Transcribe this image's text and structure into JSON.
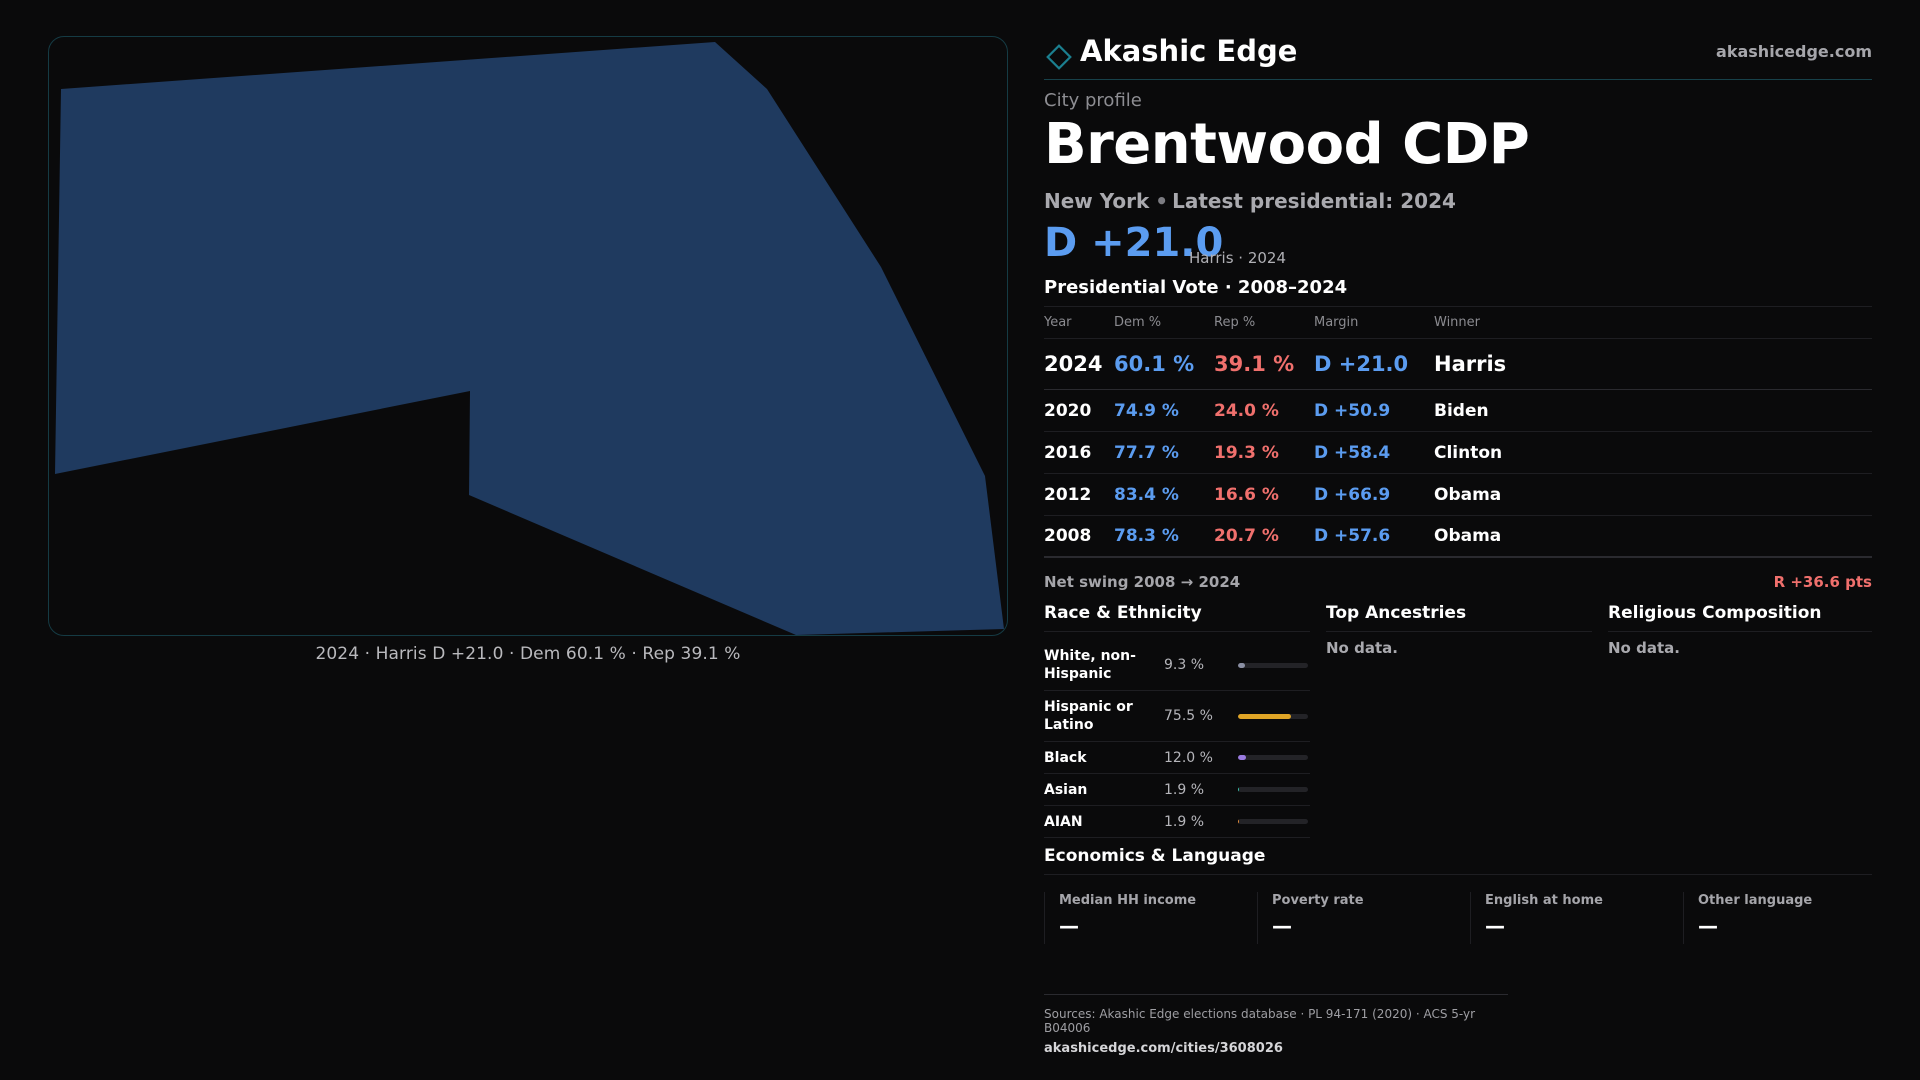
{
  "brand": {
    "name": "Akashic Edge",
    "url": "akashicedge.com",
    "accent_color": "#1b7f8f",
    "logo_icon": "diamond-outline-icon"
  },
  "map": {
    "shape_color": "#1f3a5f",
    "caption": "2024 · Harris D +21.0 · Dem 60.1 % · Rep 39.1 %"
  },
  "profile": {
    "eyebrow": "City profile",
    "title": "Brentwood CDP",
    "state": "New York",
    "latest_text": "Latest presidential: 2024",
    "latest_margin": "D +21.0",
    "latest_note": "Harris · 2024"
  },
  "vote": {
    "title": "Presidential Vote · 2008–2024",
    "headers": [
      "Year",
      "Dem %",
      "Rep %",
      "Margin",
      "Winner"
    ],
    "rows": [
      {
        "year": "2024",
        "dem": "60.1 %",
        "rep": "39.1 %",
        "margin": "D +21.0",
        "winner": "Harris"
      },
      {
        "year": "2020",
        "dem": "74.9 %",
        "rep": "24.0 %",
        "margin": "D +50.9",
        "winner": "Biden"
      },
      {
        "year": "2016",
        "dem": "77.7 %",
        "rep": "19.3 %",
        "margin": "D +58.4",
        "winner": "Clinton"
      },
      {
        "year": "2012",
        "dem": "83.4 %",
        "rep": "16.6 %",
        "margin": "D +66.9",
        "winner": "Obama"
      },
      {
        "year": "2008",
        "dem": "78.3 %",
        "rep": "20.7 %",
        "margin": "D +57.6",
        "winner": "Obama"
      }
    ],
    "swing_label": "Net swing 2008 → 2024",
    "swing_value": "R +36.6 pts"
  },
  "colors": {
    "dem": "#5b9cf0",
    "rep": "#f0706d"
  },
  "race": {
    "title": "Race & Ethnicity",
    "items": [
      {
        "label": "White, non-Hispanic",
        "pct": "9.3 %",
        "value": 9.3,
        "color": "#8a8fa3"
      },
      {
        "label": "Hispanic or Latino",
        "pct": "75.5 %",
        "value": 75.5,
        "color": "#e0a526"
      },
      {
        "label": "Black",
        "pct": "12.0 %",
        "value": 12.0,
        "color": "#9a7be0"
      },
      {
        "label": "Asian",
        "pct": "1.9 %",
        "value": 1.9,
        "color": "#38c0a8"
      },
      {
        "label": "AIAN",
        "pct": "1.9 %",
        "value": 1.9,
        "color": "#e08a3a"
      }
    ]
  },
  "ancestries": {
    "title": "Top Ancestries",
    "empty": "No data."
  },
  "religion": {
    "title": "Religious Composition",
    "empty": "No data."
  },
  "economics": {
    "title": "Economics & Language",
    "cards": [
      {
        "label": "Median HH income",
        "value": "—"
      },
      {
        "label": "Poverty rate",
        "value": "—"
      },
      {
        "label": "English at home",
        "value": "—"
      },
      {
        "label": "Other language",
        "value": "—"
      }
    ]
  },
  "footer": {
    "sources": "Sources: Akashic Edge elections database · PL 94-171 (2020) · ACS 5-yr B04006",
    "url": "akashicedge.com/cities/3608026"
  }
}
